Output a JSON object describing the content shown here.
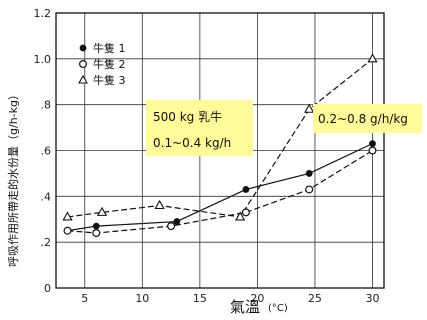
{
  "chart_data": {
    "type": "line",
    "ylabel": "呼吸作用所帶走的水份量（g/h-kg）",
    "xlabel": "氣溫",
    "xunit": "(°C)",
    "xlim": [
      2.5,
      31
    ],
    "ylim": [
      0,
      1.2
    ],
    "xticks": [
      5,
      10,
      15,
      20,
      25,
      30
    ],
    "xtick_labels": [
      "5",
      "10",
      "15",
      "20",
      "25",
      "30"
    ],
    "yticks": [
      0.2,
      0.4,
      0.6,
      0.8,
      1.0,
      1.2
    ],
    "ytick_labels": [
      ".2",
      ".4",
      ".6",
      ".8",
      "1.0",
      "1.2"
    ],
    "grid": true,
    "legend_position": "top-left",
    "series": [
      {
        "name": "牛隻 1",
        "marker": "filled-circle",
        "line": "solid",
        "x": [
          3.5,
          6,
          13,
          19,
          24.5,
          30
        ],
        "y": [
          0.25,
          0.27,
          0.29,
          0.43,
          0.5,
          0.63
        ]
      },
      {
        "name": "牛隻 2",
        "marker": "open-circle",
        "line": "dashed",
        "x": [
          3.5,
          6,
          12.5,
          19,
          24.5,
          30
        ],
        "y": [
          0.25,
          0.24,
          0.27,
          0.33,
          0.43,
          0.6
        ]
      },
      {
        "name": "牛隻 3",
        "marker": "open-triangle",
        "line": "dashed",
        "x": [
          3.5,
          6.5,
          11.5,
          18.5,
          24.5,
          30
        ],
        "y": [
          0.31,
          0.33,
          0.36,
          0.31,
          0.78,
          1.0
        ]
      }
    ],
    "annotations": [
      {
        "lines": [
          "500 kg 乳牛",
          "0.1~0.4 kg/h"
        ],
        "color": "#fffb9a"
      },
      {
        "lines": [
          "0.2~0.8 g/h/kg"
        ],
        "color": "#fffb9a"
      }
    ]
  }
}
